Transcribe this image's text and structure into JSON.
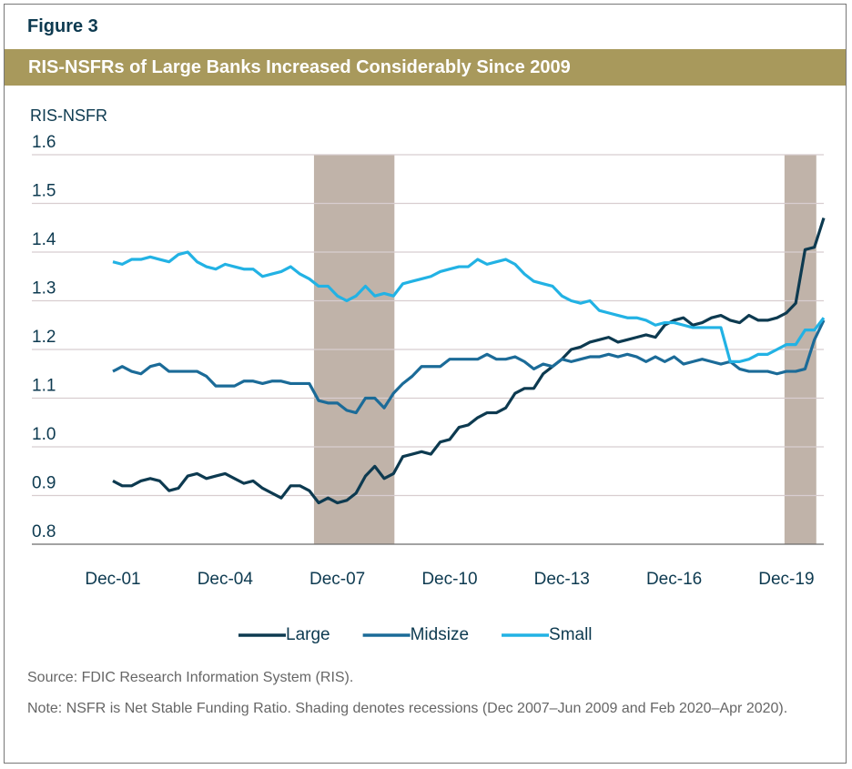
{
  "chart_data": {
    "type": "line",
    "figure_label": "Figure 3",
    "title": "RIS-NSFRs of Large Banks Increased Considerably Since 2009",
    "y_label": "RIS-NSFR",
    "source": "Source: FDIC Research Information System (RIS).",
    "note": "Note: NSFR is Net Stable Funding Ratio. Shading denotes recessions (Dec 2007–Jun 2009 and Feb 2020–Apr 2020).",
    "categories": [
      "Dec-01",
      null,
      null,
      null,
      null,
      null,
      null,
      null,
      null,
      null,
      null,
      null,
      "Dec-04",
      null,
      null,
      null,
      null,
      null,
      null,
      null,
      null,
      null,
      null,
      null,
      "Dec-07",
      null,
      null,
      null,
      null,
      null,
      null,
      null,
      null,
      null,
      null,
      null,
      "Dec-10",
      null,
      null,
      null,
      null,
      null,
      null,
      null,
      null,
      null,
      null,
      null,
      "Dec-13",
      null,
      null,
      null,
      null,
      null,
      null,
      null,
      null,
      null,
      null,
      null,
      "Dec-16",
      null,
      null,
      null,
      null,
      null,
      null,
      null,
      null,
      null,
      null,
      null,
      "Dec-19",
      null,
      null,
      null,
      null
    ],
    "series": [
      {
        "name": "Large",
        "color": "#0d3a50",
        "values": [
          0.93,
          0.92,
          0.92,
          0.93,
          0.935,
          0.93,
          0.91,
          0.915,
          0.94,
          0.945,
          0.935,
          0.94,
          0.945,
          0.935,
          0.925,
          0.93,
          0.915,
          0.905,
          0.895,
          0.92,
          0.92,
          0.91,
          0.885,
          0.895,
          0.885,
          0.89,
          0.905,
          0.94,
          0.96,
          0.935,
          0.945,
          0.98,
          0.985,
          0.99,
          0.985,
          1.01,
          1.015,
          1.04,
          1.045,
          1.06,
          1.07,
          1.07,
          1.08,
          1.11,
          1.12,
          1.12,
          1.15,
          1.165,
          1.18,
          1.2,
          1.205,
          1.215,
          1.22,
          1.225,
          1.215,
          1.22,
          1.225,
          1.23,
          1.225,
          1.25,
          1.26,
          1.265,
          1.25,
          1.255,
          1.265,
          1.27,
          1.26,
          1.255,
          1.27,
          1.26,
          1.26,
          1.265,
          1.275,
          1.295,
          1.405,
          1.41,
          1.47
        ]
      },
      {
        "name": "Midsize",
        "color": "#1b6b98",
        "values": [
          1.155,
          1.165,
          1.155,
          1.15,
          1.165,
          1.17,
          1.155,
          1.155,
          1.155,
          1.155,
          1.145,
          1.125,
          1.125,
          1.125,
          1.135,
          1.135,
          1.13,
          1.135,
          1.135,
          1.13,
          1.13,
          1.13,
          1.095,
          1.09,
          1.09,
          1.075,
          1.07,
          1.1,
          1.1,
          1.08,
          1.11,
          1.13,
          1.145,
          1.165,
          1.165,
          1.165,
          1.18,
          1.18,
          1.18,
          1.18,
          1.19,
          1.18,
          1.18,
          1.185,
          1.175,
          1.16,
          1.17,
          1.165,
          1.18,
          1.175,
          1.18,
          1.185,
          1.185,
          1.19,
          1.185,
          1.19,
          1.185,
          1.175,
          1.185,
          1.175,
          1.185,
          1.17,
          1.175,
          1.18,
          1.175,
          1.17,
          1.175,
          1.16,
          1.155,
          1.155,
          1.155,
          1.15,
          1.155,
          1.155,
          1.16,
          1.22,
          1.26
        ]
      },
      {
        "name": "Small",
        "color": "#22b2e4",
        "values": [
          1.38,
          1.375,
          1.385,
          1.385,
          1.39,
          1.385,
          1.38,
          1.395,
          1.4,
          1.38,
          1.37,
          1.365,
          1.375,
          1.37,
          1.365,
          1.365,
          1.35,
          1.355,
          1.36,
          1.37,
          1.355,
          1.345,
          1.33,
          1.33,
          1.31,
          1.3,
          1.31,
          1.33,
          1.31,
          1.315,
          1.31,
          1.335,
          1.34,
          1.345,
          1.35,
          1.36,
          1.365,
          1.37,
          1.37,
          1.385,
          1.375,
          1.38,
          1.385,
          1.375,
          1.355,
          1.34,
          1.335,
          1.33,
          1.31,
          1.3,
          1.295,
          1.3,
          1.28,
          1.275,
          1.27,
          1.265,
          1.265,
          1.26,
          1.25,
          1.255,
          1.255,
          1.25,
          1.245,
          1.245,
          1.245,
          1.245,
          1.175,
          1.175,
          1.18,
          1.19,
          1.19,
          1.2,
          1.21,
          1.21,
          1.24,
          1.24,
          1.265
        ]
      }
    ],
    "ylim": [
      0.8,
      1.6
    ],
    "yticks": [
      0.8,
      0.9,
      {
        "value": 1,
        "label": "1.0"
      },
      1.1,
      1.2,
      1.3,
      1.4,
      1.5,
      1.6
    ],
    "grid": true,
    "shading": [
      {
        "from": 21.5,
        "to": 30.1
      },
      {
        "from": 71.8,
        "to": 75.2
      }
    ],
    "shading_color": "#c0b3a9",
    "legend": "bottom"
  }
}
